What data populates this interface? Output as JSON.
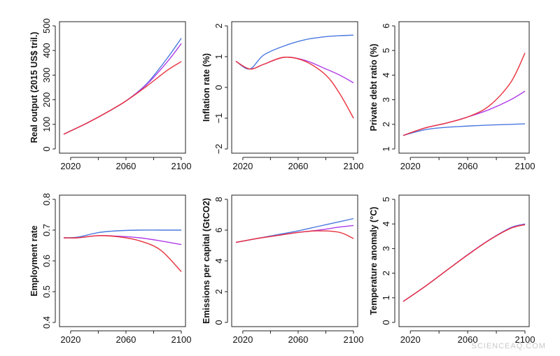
{
  "watermark": "SCIENCEAQ.COM",
  "series_colors": [
    "#4a78e0",
    "#b03ce8",
    "#e8323c"
  ],
  "chart_data": [
    {
      "type": "line",
      "ylabel": "Real output (2015 US$ tril.)",
      "xlim": [
        2015,
        2100
      ],
      "ylim": [
        0,
        500
      ],
      "xticks": [
        2020,
        2060,
        2100
      ],
      "yticks": [
        0,
        100,
        200,
        300,
        400,
        500
      ],
      "x": [
        2015,
        2030,
        2045,
        2060,
        2075,
        2090,
        2100
      ],
      "series": [
        {
          "values": [
            60,
            100,
            145,
            195,
            265,
            370,
            450
          ]
        },
        {
          "values": [
            60,
            100,
            145,
            195,
            262,
            355,
            428
          ]
        },
        {
          "values": [
            60,
            100,
            145,
            195,
            255,
            320,
            355
          ]
        }
      ]
    },
    {
      "type": "line",
      "ylabel": "Inflation rate (%)",
      "xlim": [
        2015,
        2100
      ],
      "ylim": [
        -2,
        2
      ],
      "xticks": [
        2020,
        2060,
        2100
      ],
      "yticks": [
        -2,
        -1,
        0,
        1,
        2
      ],
      "x": [
        2015,
        2025,
        2035,
        2050,
        2065,
        2080,
        2090,
        2100
      ],
      "series": [
        {
          "values": [
            0.85,
            0.6,
            1.05,
            1.35,
            1.55,
            1.65,
            1.68,
            1.7
          ]
        },
        {
          "values": [
            0.85,
            0.6,
            0.75,
            0.98,
            0.88,
            0.6,
            0.4,
            0.15
          ]
        },
        {
          "values": [
            0.85,
            0.6,
            0.75,
            0.98,
            0.85,
            0.4,
            -0.2,
            -1.0
          ]
        }
      ]
    },
    {
      "type": "line",
      "ylabel": "Private debt ratio (%)",
      "xlim": [
        2015,
        2100
      ],
      "ylim": [
        1,
        6
      ],
      "xticks": [
        2020,
        2060,
        2100
      ],
      "yticks": [
        1,
        2,
        3,
        4,
        5,
        6
      ],
      "x": [
        2015,
        2030,
        2045,
        2060,
        2075,
        2090,
        2100
      ],
      "series": [
        {
          "values": [
            1.55,
            1.78,
            1.88,
            1.93,
            1.97,
            2.0,
            2.02
          ]
        },
        {
          "values": [
            1.55,
            1.85,
            2.05,
            2.3,
            2.6,
            3.0,
            3.35
          ]
        },
        {
          "values": [
            1.55,
            1.85,
            2.05,
            2.3,
            2.75,
            3.7,
            4.9
          ]
        }
      ]
    },
    {
      "type": "line",
      "ylabel": "Employment rate",
      "xlim": [
        2015,
        2100
      ],
      "ylim": [
        0.4,
        0.8
      ],
      "xticks": [
        2020,
        2060,
        2100
      ],
      "yticks": [
        0.4,
        0.5,
        0.6,
        0.7,
        0.8
      ],
      "x": [
        2015,
        2025,
        2040,
        2055,
        2070,
        2085,
        2100
      ],
      "series": [
        {
          "values": [
            0.675,
            0.677,
            0.692,
            0.698,
            0.7,
            0.7,
            0.7
          ]
        },
        {
          "values": [
            0.675,
            0.675,
            0.682,
            0.68,
            0.675,
            0.665,
            0.653
          ]
        },
        {
          "values": [
            0.675,
            0.675,
            0.682,
            0.678,
            0.665,
            0.635,
            0.565
          ]
        }
      ]
    },
    {
      "type": "line",
      "ylabel": "Emissions per capital (GtCO2)",
      "xlim": [
        2015,
        2100
      ],
      "ylim": [
        0,
        8
      ],
      "xticks": [
        2020,
        2060,
        2100
      ],
      "yticks": [
        0,
        2,
        4,
        6,
        8
      ],
      "x": [
        2015,
        2030,
        2045,
        2060,
        2075,
        2090,
        2100
      ],
      "series": [
        {
          "values": [
            5.2,
            5.45,
            5.7,
            5.95,
            6.25,
            6.55,
            6.75
          ]
        },
        {
          "values": [
            5.2,
            5.45,
            5.65,
            5.85,
            6.0,
            6.2,
            6.3
          ]
        },
        {
          "values": [
            5.2,
            5.45,
            5.65,
            5.85,
            5.95,
            5.85,
            5.45
          ]
        }
      ]
    },
    {
      "type": "line",
      "ylabel": "Temperature anomaly (°C)",
      "xlim": [
        2015,
        2100
      ],
      "ylim": [
        0,
        5
      ],
      "xticks": [
        2020,
        2060,
        2100
      ],
      "yticks": [
        0,
        1,
        2,
        3,
        4,
        5
      ],
      "x": [
        2015,
        2030,
        2045,
        2060,
        2075,
        2090,
        2100
      ],
      "series": [
        {
          "values": [
            0.85,
            1.45,
            2.1,
            2.75,
            3.35,
            3.85,
            4.0
          ]
        },
        {
          "values": [
            0.85,
            1.45,
            2.1,
            2.75,
            3.35,
            3.83,
            3.98
          ]
        },
        {
          "values": [
            0.85,
            1.45,
            2.1,
            2.74,
            3.34,
            3.82,
            3.97
          ]
        }
      ]
    }
  ]
}
